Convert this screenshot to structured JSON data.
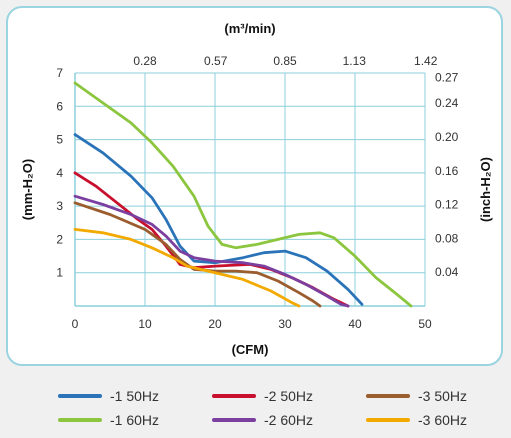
{
  "chart_data": {
    "type": "line",
    "xlabel": "(CFM)",
    "x2label": "(m³/min)",
    "ylabel": "(mm-H₂O)",
    "y2label": "(inch-H₂O)",
    "xlim": [
      0,
      50
    ],
    "ylim": [
      0,
      7
    ],
    "x_ticks": [
      0,
      10,
      20,
      30,
      40,
      50
    ],
    "y_ticks": [
      1,
      2,
      3,
      4,
      5,
      6,
      7
    ],
    "x2_ticks": [
      {
        "label": "0.28",
        "cfm": 10
      },
      {
        "label": "0.57",
        "cfm": 20.1
      },
      {
        "label": "0.85",
        "cfm": 30
      },
      {
        "label": "1.13",
        "cfm": 39.9
      },
      {
        "label": "1.42",
        "cfm": 50.1
      }
    ],
    "y2_ticks": [
      {
        "label": "0.04",
        "mm": 1.02
      },
      {
        "label": "0.08",
        "mm": 2.03
      },
      {
        "label": "0.12",
        "mm": 3.05
      },
      {
        "label": "0.16",
        "mm": 4.06
      },
      {
        "label": "0.20",
        "mm": 5.08
      },
      {
        "label": "0.24",
        "mm": 6.1
      },
      {
        "label": "0.27",
        "mm": 6.86
      }
    ],
    "grid": true,
    "legend_position": "bottom",
    "series": [
      {
        "name": "-1 50Hz",
        "color": "#2a73b8",
        "points": [
          [
            0,
            5.15
          ],
          [
            4,
            4.6
          ],
          [
            8,
            3.9
          ],
          [
            11,
            3.25
          ],
          [
            13,
            2.6
          ],
          [
            15,
            1.8
          ],
          [
            17,
            1.35
          ],
          [
            20,
            1.3
          ],
          [
            24,
            1.45
          ],
          [
            27,
            1.6
          ],
          [
            30,
            1.65
          ],
          [
            33,
            1.45
          ],
          [
            36,
            1.05
          ],
          [
            39,
            0.5
          ],
          [
            41,
            0.05
          ]
        ]
      },
      {
        "name": "-2 50Hz",
        "color": "#c8102e",
        "points": [
          [
            0,
            4.0
          ],
          [
            3,
            3.6
          ],
          [
            6,
            3.1
          ],
          [
            9,
            2.6
          ],
          [
            11,
            2.3
          ],
          [
            13,
            1.8
          ],
          [
            15,
            1.25
          ],
          [
            17,
            1.15
          ],
          [
            20,
            1.2
          ],
          [
            25,
            1.25
          ],
          [
            28,
            1.1
          ],
          [
            31,
            0.85
          ],
          [
            34,
            0.55
          ],
          [
            37,
            0.2
          ],
          [
            39,
            0.0
          ]
        ]
      },
      {
        "name": "-3 50Hz",
        "color": "#9b5c2e",
        "points": [
          [
            0,
            3.1
          ],
          [
            5,
            2.75
          ],
          [
            10,
            2.3
          ],
          [
            13,
            1.85
          ],
          [
            15,
            1.4
          ],
          [
            17,
            1.1
          ],
          [
            20,
            1.05
          ],
          [
            23,
            1.05
          ],
          [
            26,
            1.0
          ],
          [
            29,
            0.75
          ],
          [
            32,
            0.4
          ],
          [
            34,
            0.15
          ],
          [
            35,
            0.0
          ]
        ]
      },
      {
        "name": "-1 60Hz",
        "color": "#8cc63f",
        "points": [
          [
            0,
            6.7
          ],
          [
            4,
            6.1
          ],
          [
            8,
            5.5
          ],
          [
            11,
            4.9
          ],
          [
            14,
            4.2
          ],
          [
            17,
            3.3
          ],
          [
            19,
            2.4
          ],
          [
            21,
            1.85
          ],
          [
            23,
            1.75
          ],
          [
            26,
            1.85
          ],
          [
            29,
            2.0
          ],
          [
            32,
            2.15
          ],
          [
            35,
            2.2
          ],
          [
            37,
            2.05
          ],
          [
            40,
            1.5
          ],
          [
            43,
            0.85
          ],
          [
            46,
            0.35
          ],
          [
            48,
            0.0
          ]
        ]
      },
      {
        "name": "-2 60Hz",
        "color": "#7b3fa0",
        "points": [
          [
            0,
            3.3
          ],
          [
            4,
            3.05
          ],
          [
            8,
            2.75
          ],
          [
            11,
            2.45
          ],
          [
            13,
            2.1
          ],
          [
            15,
            1.65
          ],
          [
            17,
            1.45
          ],
          [
            20,
            1.35
          ],
          [
            24,
            1.3
          ],
          [
            27,
            1.2
          ],
          [
            30,
            0.95
          ],
          [
            33,
            0.65
          ],
          [
            36,
            0.3
          ],
          [
            38,
            0.05
          ],
          [
            39,
            0.0
          ]
        ]
      },
      {
        "name": "-3 60Hz",
        "color": "#f2a900",
        "points": [
          [
            0,
            2.3
          ],
          [
            4,
            2.2
          ],
          [
            8,
            2.0
          ],
          [
            11,
            1.75
          ],
          [
            14,
            1.45
          ],
          [
            16,
            1.2
          ],
          [
            20,
            1.0
          ],
          [
            24,
            0.8
          ],
          [
            28,
            0.45
          ],
          [
            31,
            0.1
          ],
          [
            32,
            0.0
          ]
        ]
      }
    ]
  }
}
